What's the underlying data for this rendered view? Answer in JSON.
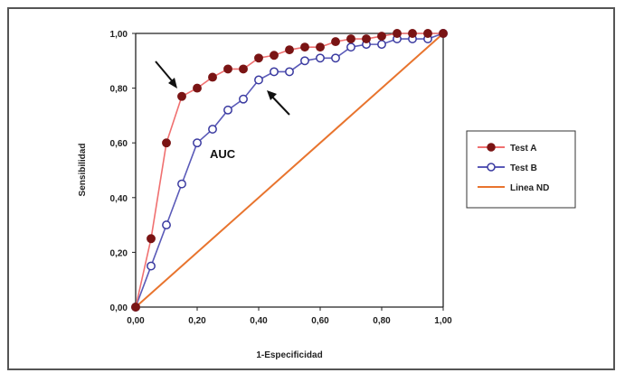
{
  "chart_data": {
    "type": "line",
    "xlabel": "1-Especificidad",
    "ylabel": "Sensibilidad",
    "xlim": [
      0,
      1
    ],
    "ylim": [
      0,
      1
    ],
    "x_ticks": [
      "0,00",
      "0,20",
      "0,40",
      "0,60",
      "0,80",
      "1,00"
    ],
    "y_ticks": [
      "0,00",
      "0,20",
      "0,40",
      "0,60",
      "0,80",
      "1,00"
    ],
    "grid": false,
    "legend_position": "right",
    "annotations": [
      "AUC"
    ],
    "series": [
      {
        "name": "Test A",
        "color": "#7a1414",
        "line_color": "#f07070",
        "marker": "filled-circle",
        "x": [
          0,
          0.05,
          0.1,
          0.15,
          0.2,
          0.25,
          0.3,
          0.35,
          0.4,
          0.45,
          0.5,
          0.55,
          0.6,
          0.65,
          0.7,
          0.75,
          0.8,
          0.85,
          0.9,
          0.95,
          1.0
        ],
        "y": [
          0,
          0.25,
          0.6,
          0.77,
          0.8,
          0.84,
          0.87,
          0.87,
          0.91,
          0.92,
          0.94,
          0.95,
          0.95,
          0.97,
          0.98,
          0.98,
          0.99,
          1.0,
          1.0,
          1.0,
          1.0
        ]
      },
      {
        "name": "Test B",
        "color": "#3a3aa0",
        "line_color": "#5a5ab8",
        "marker": "open-circle",
        "x": [
          0,
          0.05,
          0.1,
          0.15,
          0.2,
          0.25,
          0.3,
          0.35,
          0.4,
          0.45,
          0.5,
          0.55,
          0.6,
          0.65,
          0.7,
          0.75,
          0.8,
          0.85,
          0.9,
          0.95,
          1.0
        ],
        "y": [
          0,
          0.15,
          0.3,
          0.45,
          0.6,
          0.65,
          0.72,
          0.76,
          0.83,
          0.86,
          0.86,
          0.9,
          0.91,
          0.91,
          0.95,
          0.96,
          0.96,
          0.98,
          0.98,
          0.98,
          1.0
        ]
      },
      {
        "name": "Linea ND",
        "color": "#e8742e",
        "marker": "none",
        "x": [
          0,
          1
        ],
        "y": [
          0,
          1
        ]
      }
    ]
  }
}
